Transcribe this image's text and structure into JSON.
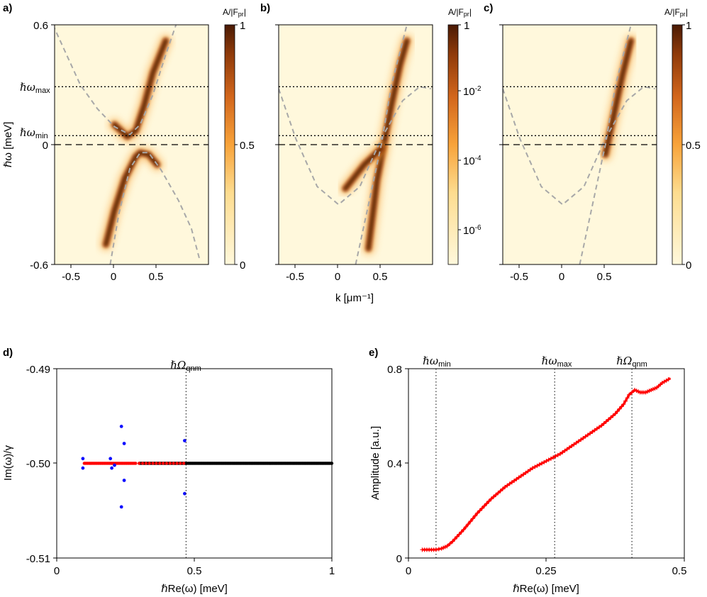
{
  "colors": {
    "cmap_low": "#FFF8DC",
    "cmap_mid": "#F8A33A",
    "cmap_high": "#4A1A04",
    "guide_curve": "#A8A8A8",
    "red_points": "#FF0000",
    "blue_points": "#1010FF",
    "black_points": "#000000"
  },
  "top_row": {
    "ylabel": "ℏω [meV]",
    "xlabel": "k [μm⁻¹]",
    "y_ticks": [
      "0.6",
      "0",
      "-0.6"
    ],
    "x_ticks": [
      "-0.5",
      "0",
      "0.5"
    ],
    "ann_max": "ℏω",
    "ann_max_sub": "max",
    "ann_min": "ℏω",
    "ann_min_sub": "min",
    "colorbar_title": "A/|F",
    "colorbar_title_sub": "pr",
    "colorbar_title_end": "|"
  },
  "panels": {
    "a": {
      "label": "a)",
      "cb_ticks": [
        "1",
        "0.5",
        "0"
      ]
    },
    "b": {
      "label": "b)",
      "cb_ticks": [
        "1",
        "10",
        "10",
        "10"
      ],
      "cb_exps": [
        "-2",
        "-4",
        "-6"
      ]
    },
    "c": {
      "label": "c)",
      "cb_ticks": [
        "1",
        "0.5",
        "0"
      ]
    },
    "d": {
      "label": "d)",
      "ann_qnm": "ℏΩ",
      "ann_qnm_sub": "qnm",
      "ylabel": "Im(ω)/γ",
      "xlabel": "ℏRe(ω) [meV]",
      "y_ticks": [
        "-0.49",
        "-0.50",
        "-0.51"
      ],
      "x_ticks": [
        "0",
        "0.5",
        "1"
      ]
    },
    "e": {
      "label": "e)",
      "ann_min": "ℏω",
      "ann_min_sub": "min",
      "ann_max": "ℏω",
      "ann_max_sub": "max",
      "ann_qnm": "ℏΩ",
      "ann_qnm_sub": "qnm",
      "ylabel": "Amplitude [a.u.]",
      "xlabel": "ℏRe(ω) [meV]",
      "y_ticks": [
        "0.8",
        "0.4",
        "0"
      ],
      "x_ticks": [
        "0",
        "0.25",
        "0.5"
      ]
    }
  },
  "chart_data": [
    {
      "panel": "a",
      "type": "heatmap",
      "xlim": [
        -0.7,
        1.1
      ],
      "ylim": [
        -0.6,
        0.6
      ],
      "colorbar": {
        "scale": "linear",
        "range": [
          0,
          1
        ]
      },
      "hlines": [
        {
          "y": 0.29,
          "style": "dotted"
        },
        {
          "y": 0.045,
          "style": "dotted"
        },
        {
          "y": 0.0,
          "style": "dashed"
        }
      ],
      "guide_curves": [
        {
          "name": "upper",
          "points": [
            [
              -0.72,
              0.6
            ],
            [
              -0.4,
              0.3
            ],
            [
              -0.2,
              0.18
            ],
            [
              0.0,
              0.09
            ],
            [
              0.18,
              0.05
            ],
            [
              0.3,
              0.1
            ],
            [
              0.45,
              0.25
            ],
            [
              0.6,
              0.45
            ],
            [
              0.72,
              0.6
            ]
          ]
        },
        {
          "name": "lower",
          "points": [
            [
              -0.05,
              -0.6
            ],
            [
              0.05,
              -0.35
            ],
            [
              0.18,
              -0.12
            ],
            [
              0.3,
              -0.04
            ],
            [
              0.4,
              -0.04
            ],
            [
              0.55,
              -0.13
            ],
            [
              0.75,
              -0.28
            ],
            [
              0.9,
              -0.42
            ],
            [
              1.0,
              -0.58
            ]
          ]
        }
      ],
      "bands": [
        {
          "points": [
            [
              0.0,
              0.1
            ],
            [
              0.15,
              0.04
            ],
            [
              0.25,
              0.07
            ],
            [
              0.35,
              0.2
            ],
            [
              0.45,
              0.36
            ],
            [
              0.6,
              0.52
            ]
          ]
        },
        {
          "points": [
            [
              -0.1,
              -0.5
            ],
            [
              0.0,
              -0.33
            ],
            [
              0.12,
              -0.17
            ],
            [
              0.25,
              -0.06
            ],
            [
              0.3,
              -0.04
            ],
            [
              0.4,
              -0.05
            ],
            [
              0.5,
              -0.1
            ]
          ]
        }
      ]
    },
    {
      "panel": "b",
      "type": "heatmap",
      "xlim": [
        -0.7,
        1.1
      ],
      "ylim": [
        -0.6,
        0.6
      ],
      "colorbar": {
        "scale": "log",
        "range": [
          1e-07,
          1
        ],
        "ticks": [
          1,
          0.01,
          0.0001,
          1e-06
        ]
      },
      "hlines": [
        {
          "y": 0.29,
          "style": "dotted"
        },
        {
          "y": 0.045,
          "style": "dotted"
        },
        {
          "y": 0.0,
          "style": "dashed"
        }
      ],
      "guide_curves": [
        {
          "name": "parabola",
          "points": [
            [
              -0.7,
              0.28
            ],
            [
              -0.5,
              0.03
            ],
            [
              -0.25,
              -0.21
            ],
            [
              0.0,
              -0.3
            ],
            [
              0.25,
              -0.21
            ],
            [
              0.5,
              0.03
            ],
            [
              0.75,
              0.22
            ],
            [
              0.95,
              0.29
            ],
            [
              1.08,
              0.28
            ]
          ]
        },
        {
          "name": "line",
          "points": [
            [
              0.2,
              -0.6
            ],
            [
              0.5,
              0.0
            ],
            [
              0.62,
              0.3
            ],
            [
              0.8,
              0.6
            ]
          ]
        }
      ],
      "bands": [
        {
          "points": [
            [
              0.35,
              -0.52
            ],
            [
              0.45,
              -0.18
            ],
            [
              0.53,
              0.0
            ],
            [
              0.62,
              0.2
            ],
            [
              0.72,
              0.4
            ],
            [
              0.8,
              0.52
            ]
          ]
        },
        {
          "points": [
            [
              0.08,
              -0.22
            ],
            [
              0.3,
              -0.1
            ],
            [
              0.5,
              -0.02
            ]
          ]
        }
      ]
    },
    {
      "panel": "c",
      "type": "heatmap",
      "xlim": [
        -0.7,
        1.1
      ],
      "ylim": [
        -0.6,
        0.6
      ],
      "colorbar": {
        "scale": "linear",
        "range": [
          0,
          1
        ]
      },
      "hlines": [
        {
          "y": 0.29,
          "style": "dotted"
        },
        {
          "y": 0.045,
          "style": "dotted"
        },
        {
          "y": 0.0,
          "style": "dashed"
        }
      ],
      "guide_curves": [
        {
          "name": "parabola",
          "points": [
            [
              -0.7,
              0.28
            ],
            [
              -0.5,
              0.03
            ],
            [
              -0.25,
              -0.21
            ],
            [
              0.0,
              -0.3
            ],
            [
              0.25,
              -0.21
            ],
            [
              0.5,
              0.03
            ],
            [
              0.75,
              0.22
            ],
            [
              0.95,
              0.29
            ],
            [
              1.08,
              0.28
            ]
          ]
        },
        {
          "name": "line",
          "points": [
            [
              0.2,
              -0.6
            ],
            [
              0.5,
              0.0
            ],
            [
              0.62,
              0.3
            ],
            [
              0.8,
              0.6
            ]
          ]
        }
      ],
      "bands": [
        {
          "points": [
            [
              0.5,
              -0.05
            ],
            [
              0.6,
              0.15
            ],
            [
              0.7,
              0.35
            ],
            [
              0.8,
              0.52
            ]
          ]
        }
      ]
    },
    {
      "panel": "d",
      "type": "scatter",
      "xlim": [
        0,
        1
      ],
      "ylim": [
        -0.51,
        -0.49
      ],
      "vline": 0.47,
      "series": [
        {
          "color": "black",
          "x_range": [
            0.3,
            1.0
          ],
          "y": -0.5
        },
        {
          "color": "red",
          "x_range": [
            0.1,
            0.47
          ],
          "y": -0.5
        },
        {
          "color": "blue",
          "points": [
            [
              0.095,
              -0.4995
            ],
            [
              0.095,
              -0.5005
            ],
            [
              0.195,
              -0.4995
            ],
            [
              0.2,
              -0.5005
            ],
            [
              0.21,
              -0.5002
            ],
            [
              0.235,
              -0.4961
            ],
            [
              0.235,
              -0.5046
            ],
            [
              0.245,
              -0.4979
            ],
            [
              0.245,
              -0.5018
            ],
            [
              0.465,
              -0.4976
            ],
            [
              0.465,
              -0.5032
            ]
          ]
        }
      ]
    },
    {
      "panel": "e",
      "type": "line",
      "xlim": [
        0,
        0.5
      ],
      "ylim": [
        0,
        0.8
      ],
      "vlines": [
        0.05,
        0.265,
        0.405
      ],
      "x": [
        0.025,
        0.05,
        0.06,
        0.07,
        0.08,
        0.1,
        0.125,
        0.15,
        0.175,
        0.2,
        0.225,
        0.25,
        0.275,
        0.3,
        0.325,
        0.35,
        0.375,
        0.39,
        0.4,
        0.41,
        0.42,
        0.43,
        0.44,
        0.45,
        0.46,
        0.475
      ],
      "y": [
        0.035,
        0.035,
        0.04,
        0.05,
        0.07,
        0.12,
        0.19,
        0.25,
        0.3,
        0.34,
        0.38,
        0.41,
        0.44,
        0.48,
        0.52,
        0.56,
        0.61,
        0.65,
        0.69,
        0.71,
        0.7,
        0.7,
        0.71,
        0.72,
        0.74,
        0.76
      ]
    }
  ]
}
